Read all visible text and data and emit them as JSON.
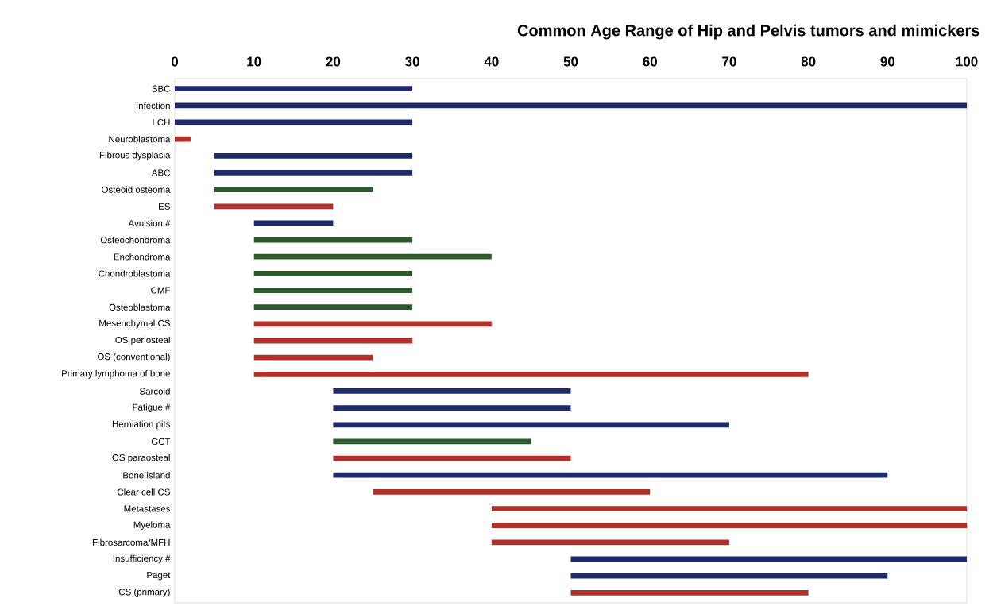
{
  "chart_data": {
    "type": "bar",
    "orientation": "horizontal",
    "title": "Common Age Range of Hip and Pelvis tumors and mimickers",
    "categories": [
      "SBC",
      "Infection",
      "LCH",
      "Neuroblastoma",
      "Fibrous dysplasia",
      "ABC",
      "Osteoid osteoma",
      "ES",
      "Avulsion #",
      "Osteochondroma",
      "Enchondroma",
      "Chondroblastoma",
      "CMF",
      "Osteoblastoma",
      "Mesenchymal CS",
      "OS periosteal",
      "OS (conventional)",
      "Primary lymphoma of bone",
      "Sarcoid",
      "Fatigue #",
      "Herniation pits",
      "GCT",
      "OS paraosteal",
      "Bone island",
      "Clear cell CS",
      "Metastases",
      "Myeloma",
      "Fibrosarcoma/MFH",
      "Insufficiency #",
      "Paget",
      "CS (primary)"
    ],
    "base": [
      0,
      0,
      0,
      0,
      5,
      5,
      5,
      5,
      10,
      10,
      10,
      10,
      10,
      10,
      10,
      10,
      10,
      10,
      20,
      20,
      20,
      20,
      20,
      20,
      25,
      40,
      40,
      40,
      50,
      50,
      50
    ],
    "values": [
      30,
      100,
      30,
      2,
      25,
      25,
      20,
      15,
      10,
      20,
      30,
      20,
      20,
      20,
      30,
      20,
      15,
      70,
      30,
      30,
      50,
      25,
      30,
      70,
      35,
      60,
      60,
      30,
      50,
      40,
      30
    ],
    "colors": [
      "#1f2a6b",
      "#1f2a6b",
      "#1f2a6b",
      "#b0302a",
      "#1f2a6b",
      "#1f2a6b",
      "#2d5a2d",
      "#b0302a",
      "#1f2a6b",
      "#2d5a2d",
      "#2d5a2d",
      "#2d5a2d",
      "#2d5a2d",
      "#2d5a2d",
      "#b0302a",
      "#b0302a",
      "#b0302a",
      "#b0302a",
      "#1f2a6b",
      "#1f2a6b",
      "#1f2a6b",
      "#2d5a2d",
      "#b0302a",
      "#1f2a6b",
      "#b0302a",
      "#b0302a",
      "#b0302a",
      "#b0302a",
      "#1f2a6b",
      "#1f2a6b",
      "#b0302a"
    ],
    "xlim": [
      0,
      100
    ],
    "xticks": [
      0,
      10,
      20,
      30,
      40,
      50,
      60,
      70,
      80,
      90,
      100
    ]
  }
}
